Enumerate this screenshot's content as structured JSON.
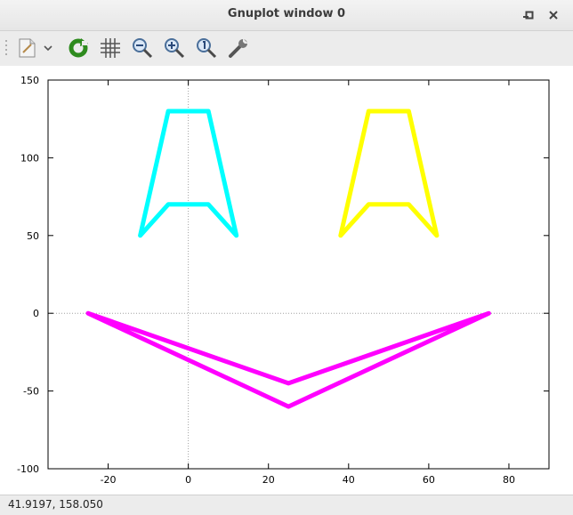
{
  "window": {
    "title": "Gnuplot window 0"
  },
  "toolbar": {
    "items": [
      {
        "name": "copy-to-clipboard",
        "icon": "clipboard-icon"
      },
      {
        "name": "dropdown",
        "icon": "chevron-down-icon"
      },
      {
        "name": "replot",
        "icon": "refresh-icon"
      },
      {
        "name": "toggle-grid",
        "icon": "grid-icon"
      },
      {
        "name": "zoom-out",
        "icon": "zoom-out-icon"
      },
      {
        "name": "zoom-in",
        "icon": "zoom-in-icon"
      },
      {
        "name": "zoom-reset",
        "icon": "zoom-reset-icon"
      },
      {
        "name": "options",
        "icon": "wrench-icon"
      }
    ]
  },
  "status": {
    "coords": "41.9197,  158.050"
  },
  "chart_data": {
    "type": "line",
    "title": "",
    "xlabel": "",
    "ylabel": "",
    "xlim": [
      -35,
      90
    ],
    "ylim": [
      -100,
      150
    ],
    "xticks": [
      -20,
      0,
      20,
      40,
      60,
      80
    ],
    "yticks": [
      -100,
      -50,
      0,
      50,
      100,
      150
    ],
    "zero_axes": true,
    "series": [
      {
        "color": "#00ffff",
        "points": [
          [
            -12,
            50
          ],
          [
            -5,
            70
          ],
          [
            5,
            70
          ],
          [
            12,
            50
          ],
          [
            5,
            130
          ],
          [
            -5,
            130
          ],
          [
            -12,
            50
          ]
        ]
      },
      {
        "color": "#ffff00",
        "points": [
          [
            38,
            50
          ],
          [
            45,
            70
          ],
          [
            55,
            70
          ],
          [
            62,
            50
          ],
          [
            55,
            130
          ],
          [
            45,
            130
          ],
          [
            38,
            50
          ]
        ]
      },
      {
        "color": "#ff00ff",
        "points": [
          [
            -25,
            0
          ],
          [
            25,
            -45
          ],
          [
            75,
            0
          ],
          [
            25,
            -60
          ],
          [
            -25,
            0
          ]
        ]
      }
    ]
  }
}
